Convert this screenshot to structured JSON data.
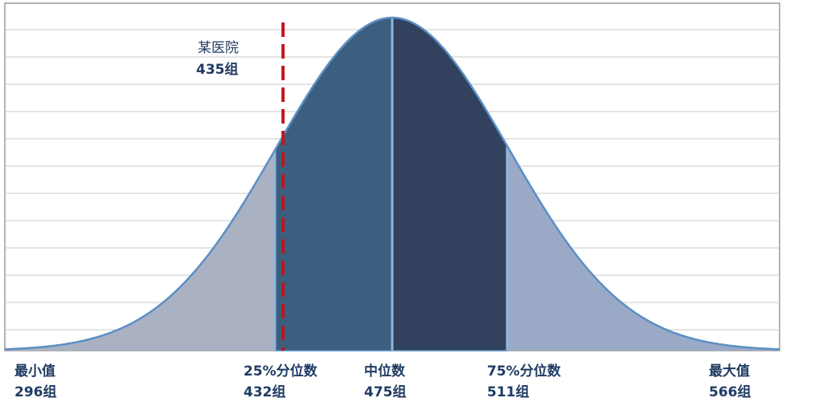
{
  "chart_data": {
    "type": "area",
    "grid": true,
    "x_range": [
      296,
      566
    ],
    "markers": [
      {
        "key": "min",
        "label": "最小值",
        "value_text": "296组",
        "value": 296
      },
      {
        "key": "q1",
        "label": "25%分位数",
        "value_text": "432组",
        "value": 432
      },
      {
        "key": "median",
        "label": "中位数",
        "value_text": "475组",
        "value": 475
      },
      {
        "key": "q3",
        "label": "75%分位数",
        "value_text": "511组",
        "value": 511
      },
      {
        "key": "max",
        "label": "最大值",
        "value_text": "566组",
        "value": 566
      }
    ],
    "reference": {
      "label": "某医院",
      "value_text": "435组",
      "value": 435,
      "color": "#c0161c",
      "style": "dashed"
    },
    "segments": [
      {
        "from": 296,
        "to": 432,
        "color": "#a9b1c2"
      },
      {
        "from": 432,
        "to": 475,
        "color": "#3c5f80"
      },
      {
        "from": 475,
        "to": 511,
        "color": "#32425e"
      },
      {
        "from": 511,
        "to": 566,
        "color": "#9aaac6"
      }
    ],
    "outline_color": "#5b8fc4",
    "grid_color": "#c8c8c8",
    "frame_color": "#9c9c9c"
  }
}
